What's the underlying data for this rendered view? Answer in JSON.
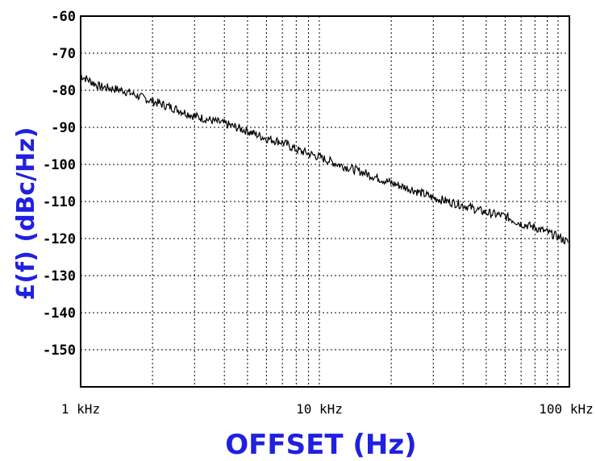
{
  "chart_data": {
    "type": "line",
    "xlabel": "OFFSET (Hz)",
    "ylabel": "£(f) (dBc/Hz)",
    "x_scale": "log",
    "xlim": [
      1000,
      110000
    ],
    "ylim": [
      -160,
      -60
    ],
    "x_ticks": [
      {
        "value": 1000,
        "label": "1 kHz"
      },
      {
        "value": 10000,
        "label": "10 kHz"
      },
      {
        "value": 100000,
        "label": "100 kHz"
      }
    ],
    "y_ticks": [
      -60,
      -70,
      -80,
      -90,
      -100,
      -110,
      -120,
      -130,
      -140,
      -150
    ],
    "grid": true,
    "series": [
      {
        "color": "#000000",
        "x": [
          1000,
          1200,
          1500,
          2000,
          2500,
          3000,
          4000,
          5000,
          6000,
          7000,
          8000,
          10000,
          12000,
          15000,
          20000,
          25000,
          30000,
          40000,
          50000,
          60000,
          70000,
          80000,
          100000,
          110000
        ],
        "y": [
          -76,
          -79,
          -80,
          -83,
          -85,
          -87,
          -89,
          -91,
          -93,
          -94,
          -96,
          -98,
          -100,
          -102,
          -105,
          -107,
          -109,
          -111,
          -113,
          -114,
          -116,
          -117,
          -119.5,
          -121
        ]
      }
    ]
  },
  "colors": {
    "axis_title": "#2020e0",
    "line": "#000000",
    "grid": "#000000"
  }
}
